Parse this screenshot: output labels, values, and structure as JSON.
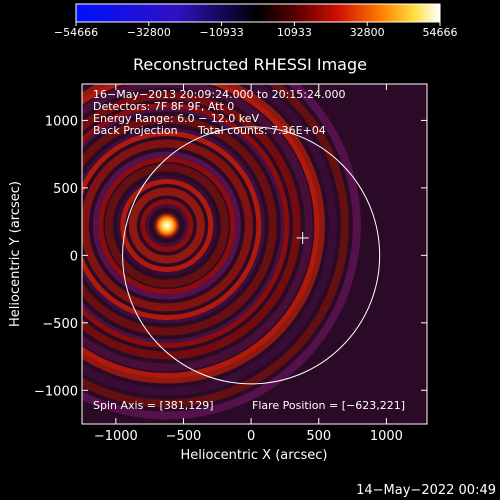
{
  "chart_data": {
    "type": "heatmap",
    "title": "Reconstructed RHESSI Image",
    "xlabel": "Heliocentric X (arcsec)",
    "ylabel": "Heliocentric Y (arcsec)",
    "xlim": [
      -1250,
      1300
    ],
    "ylim": [
      -1250,
      1270
    ],
    "x_ticks": [
      -1000,
      -500,
      0,
      500,
      1000
    ],
    "x_tick_labels": [
      "−1000",
      "−500",
      "0",
      "500",
      "1000"
    ],
    "y_ticks": [
      -1000,
      -500,
      0,
      500,
      1000
    ],
    "y_tick_labels": [
      "−1000",
      "−500",
      "0",
      "500",
      "1000"
    ],
    "colorbar": {
      "min": -54666,
      "max": 54666,
      "ticks": [
        -54666,
        -32800,
        -10933,
        10933,
        32800,
        54666
      ],
      "tick_labels": [
        "−54666",
        "−32800",
        "−10933",
        "10933",
        "32800",
        "54666"
      ],
      "colormap": "blue-purple-black-red-yellow-white"
    },
    "annotations": [
      "16−May−2013 20:09:24.000 to 20:15:24.000",
      "Detectors: 7F 8F 9F, Att 0",
      "Energy Range: 6.0 − 12.0 keV",
      "Back Projection",
      "Total counts: 7.36E+04"
    ],
    "spin_axis_label": "Spin Axis = [381,129]",
    "flare_position_label": "Flare Position = [−623,221]",
    "flare_position": [
      -623,
      221
    ],
    "spin_axis": [
      381,
      129
    ],
    "solar_limb_radius": 950,
    "footer_timestamp": "14−May−2022 00:49"
  }
}
